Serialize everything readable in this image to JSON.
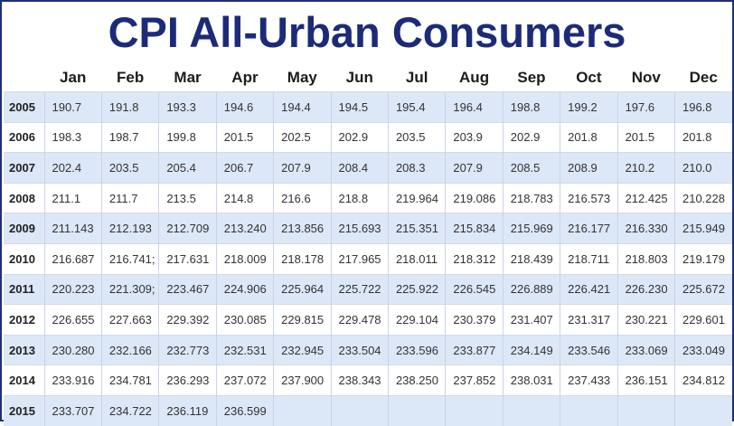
{
  "title": "CPI All-Urban Consumers",
  "months": [
    "Jan",
    "Feb",
    "Mar",
    "Apr",
    "May",
    "Jun",
    "Jul",
    "Aug",
    "Sep",
    "Oct",
    "Nov",
    "Dec"
  ],
  "rows": [
    {
      "year": "2005",
      "values": [
        "190.7",
        "191.8",
        "193.3",
        "194.6",
        "194.4",
        "194.5",
        "195.4",
        "196.4",
        "198.8",
        "199.2",
        "197.6",
        "196.8"
      ]
    },
    {
      "year": "2006",
      "values": [
        "198.3",
        "198.7",
        "199.8",
        "201.5",
        "202.5",
        "202.9",
        "203.5",
        "203.9",
        "202.9",
        "201.8",
        "201.5",
        "201.8"
      ]
    },
    {
      "year": "2007",
      "values": [
        "202.4",
        "203.5",
        "205.4",
        "206.7",
        "207.9",
        "208.4",
        "208.3",
        "207.9",
        "208.5",
        "208.9",
        "210.2",
        "210.0"
      ]
    },
    {
      "year": "2008",
      "values": [
        "211.1",
        "211.7",
        "213.5",
        "214.8",
        "216.6",
        "218.8",
        "219.964",
        "219.086",
        "218.783",
        "216.573",
        "212.425",
        "210.228"
      ]
    },
    {
      "year": "2009",
      "values": [
        "211.143",
        "212.193",
        "212.709",
        "213.240",
        "213.856",
        "215.693",
        "215.351",
        "215.834",
        "215.969",
        "216.177",
        "216.330",
        "215.949"
      ]
    },
    {
      "year": "2010",
      "values": [
        "216.687",
        "216.741;",
        "217.631",
        "218.009",
        "218.178",
        "217.965",
        "218.011",
        "218.312",
        "218.439",
        "218.711",
        "218.803",
        "219.179"
      ]
    },
    {
      "year": "2011",
      "values": [
        "220.223",
        "221.309;",
        "223.467",
        "224.906",
        "225.964",
        "225.722",
        "225.922",
        "226.545",
        "226.889",
        "226.421",
        "226.230",
        "225.672"
      ]
    },
    {
      "year": "2012",
      "values": [
        "226.655",
        "227.663",
        "229.392",
        "230.085",
        "229.815",
        "229.478",
        "229.104",
        "230.379",
        "231.407",
        "231.317",
        "230.221",
        "229.601"
      ]
    },
    {
      "year": "2013",
      "values": [
        "230.280",
        "232.166",
        "232.773",
        "232.531",
        "232.945",
        "233.504",
        "233.596",
        "233.877",
        "234.149",
        "233.546",
        "233.069",
        "233.049"
      ]
    },
    {
      "year": "2014",
      "values": [
        "233.916",
        "234.781",
        "236.293",
        "237.072",
        "237.900",
        "238.343",
        "238.250",
        "237.852",
        "238.031",
        "237.433",
        "236.151",
        "234.812"
      ]
    },
    {
      "year": "2015",
      "values": [
        "233.707",
        "234.722",
        "236.119",
        "236.599",
        "",
        "",
        "",
        "",
        "",
        "",
        "",
        ""
      ]
    }
  ]
}
